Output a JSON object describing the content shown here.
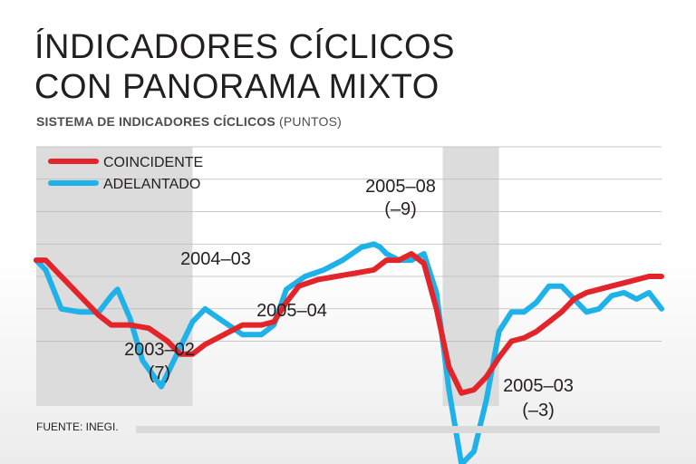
{
  "header": {
    "title_line1": "ÍNDICADORES CÍCLICOS",
    "title_line2": "CON PANORAMA MIXTO",
    "subtitle_bold": "SISTEMA DE INDICADORES CÍCLICOS",
    "subtitle_unit": "(PUNTOS)"
  },
  "footer": {
    "source": "FUENTE: INEGI."
  },
  "chart_data": {
    "type": "line",
    "title": "SISTEMA DE INDICADORES CÍCLICOS (PUNTOS)",
    "xlabel": "",
    "ylabel": "PUNTOS",
    "ylim": [
      96,
      104
    ],
    "xlim": [
      0,
      100
    ],
    "grid": true,
    "legend_position": "top-left",
    "shaded_periods": [
      [
        0,
        25
      ],
      [
        65,
        74
      ]
    ],
    "series": [
      {
        "name": "COINCIDENTE",
        "color": "#e2242b",
        "x": [
          0,
          1.5,
          4,
          7,
          10,
          12,
          15,
          18,
          21,
          23,
          25,
          27,
          30,
          33,
          36,
          38,
          40,
          42,
          45,
          48,
          51,
          54,
          56,
          58,
          60,
          62,
          64,
          66,
          68,
          70,
          72,
          74,
          76,
          78,
          80,
          82,
          84,
          86,
          88,
          90,
          92,
          94,
          96,
          98,
          100
        ],
        "values": [
          100.5,
          100.5,
          100.0,
          99.4,
          98.8,
          98.5,
          98.5,
          98.4,
          98.0,
          97.6,
          97.6,
          97.9,
          98.2,
          98.5,
          98.5,
          98.6,
          99.2,
          99.7,
          99.9,
          100.0,
          100.1,
          100.2,
          100.5,
          100.5,
          100.7,
          100.4,
          99.0,
          97.2,
          96.4,
          96.5,
          96.9,
          97.5,
          98.0,
          98.1,
          98.3,
          98.6,
          98.9,
          99.3,
          99.5,
          99.6,
          99.7,
          99.8,
          99.9,
          100.0,
          100.0
        ]
      },
      {
        "name": "ADELANTADO",
        "color": "#1fb2e8",
        "x": [
          0,
          1.5,
          4,
          7,
          10,
          12,
          13,
          15,
          17,
          20,
          22,
          25,
          27,
          30,
          33,
          36,
          38,
          40,
          43,
          46,
          49,
          52,
          54,
          55,
          56,
          58,
          60,
          62,
          64,
          66,
          68,
          70,
          72,
          74,
          76,
          78,
          80,
          82,
          84,
          86,
          88,
          90,
          92,
          94,
          96,
          98,
          100
        ],
        "values": [
          100.5,
          100.2,
          99.0,
          98.9,
          98.9,
          99.4,
          99.6,
          98.7,
          97.4,
          96.6,
          97.4,
          98.6,
          99.0,
          98.6,
          98.2,
          98.2,
          98.5,
          99.6,
          100.0,
          100.2,
          100.5,
          100.9,
          101.0,
          100.9,
          100.7,
          100.5,
          100.5,
          100.7,
          99.5,
          96.5,
          94.2,
          94.6,
          96.2,
          98.3,
          98.9,
          98.9,
          99.2,
          99.7,
          99.7,
          99.3,
          98.9,
          99.0,
          99.4,
          99.5,
          99.3,
          99.5,
          99.0
        ]
      }
    ],
    "annotations": [
      {
        "label": "2003–02",
        "sub": "(7)"
      },
      {
        "label": "2004–03",
        "sub": ""
      },
      {
        "label": "2005–04",
        "sub": ""
      },
      {
        "label": "2005–08",
        "sub": "(–9)"
      },
      {
        "label": "2005–03",
        "sub": "(–3)"
      }
    ]
  }
}
